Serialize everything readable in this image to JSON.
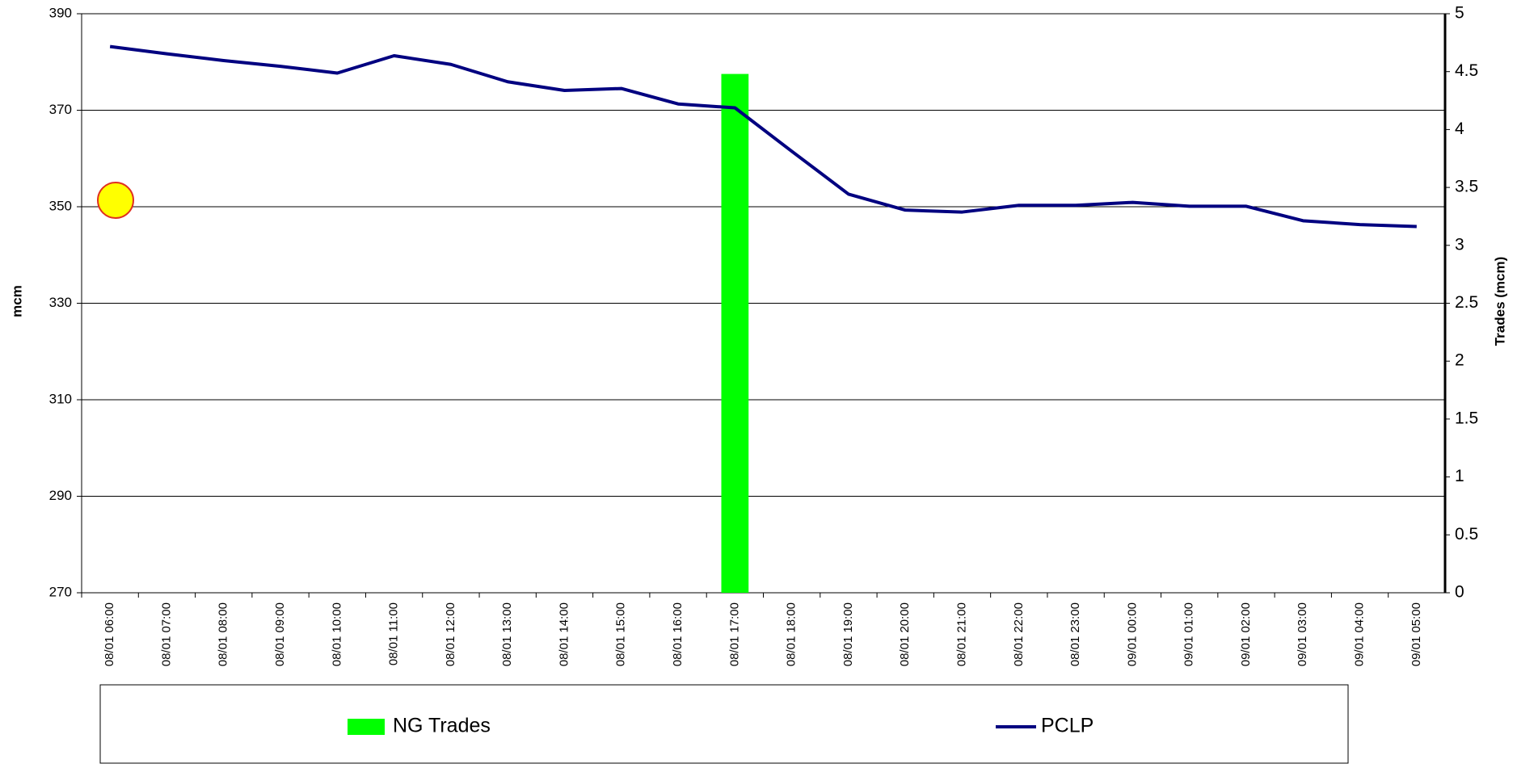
{
  "chart_data": {
    "type": "bar_line",
    "y_label": "mcm",
    "y2_label": "Trades (mcm)",
    "categories": [
      "08/01 06:00",
      "08/01 07:00",
      "08/01 08:00",
      "08/01 09:00",
      "08/01 10:00",
      "08/01 11:00",
      "08/01 12:00",
      "08/01 13:00",
      "08/01 14:00",
      "08/01 15:00",
      "08/01 16:00",
      "08/01 17:00",
      "08/01 18:00",
      "08/01 19:00",
      "08/01 20:00",
      "08/01 21:00",
      "08/01 22:00",
      "08/01 23:00",
      "09/01 00:00",
      "09/01 01:00",
      "09/01 02:00",
      "09/01 03:00",
      "09/01 04:00",
      "09/01 05:00"
    ],
    "series": [
      {
        "name": "NG Trades",
        "type": "bar",
        "axis": "y2",
        "color": "#00ff00",
        "values": [
          null,
          null,
          null,
          null,
          null,
          null,
          null,
          null,
          null,
          null,
          null,
          4.48,
          null,
          null,
          null,
          null,
          null,
          null,
          null,
          null,
          null,
          null,
          null,
          null
        ]
      },
      {
        "name": "PCLP",
        "type": "line",
        "axis": "y",
        "color": "#000080",
        "values": [
          383.2,
          381.7,
          380.3,
          379.1,
          377.7,
          381.3,
          379.5,
          375.9,
          374.1,
          374.5,
          371.3,
          370.5,
          361.5,
          352.6,
          349.3,
          348.9,
          350.3,
          350.3,
          350.9,
          350.1,
          350.1,
          347.1,
          346.3,
          345.9
        ]
      }
    ],
    "ylim": [
      270,
      390
    ],
    "yticks": [
      270,
      290,
      310,
      330,
      350,
      370,
      390
    ],
    "y2lim": [
      0,
      5
    ],
    "y2ticks": [
      0,
      0.5,
      1,
      1.5,
      2,
      2.5,
      3,
      3.5,
      4,
      4.5,
      5
    ],
    "grid": true,
    "legend": "bottom"
  }
}
